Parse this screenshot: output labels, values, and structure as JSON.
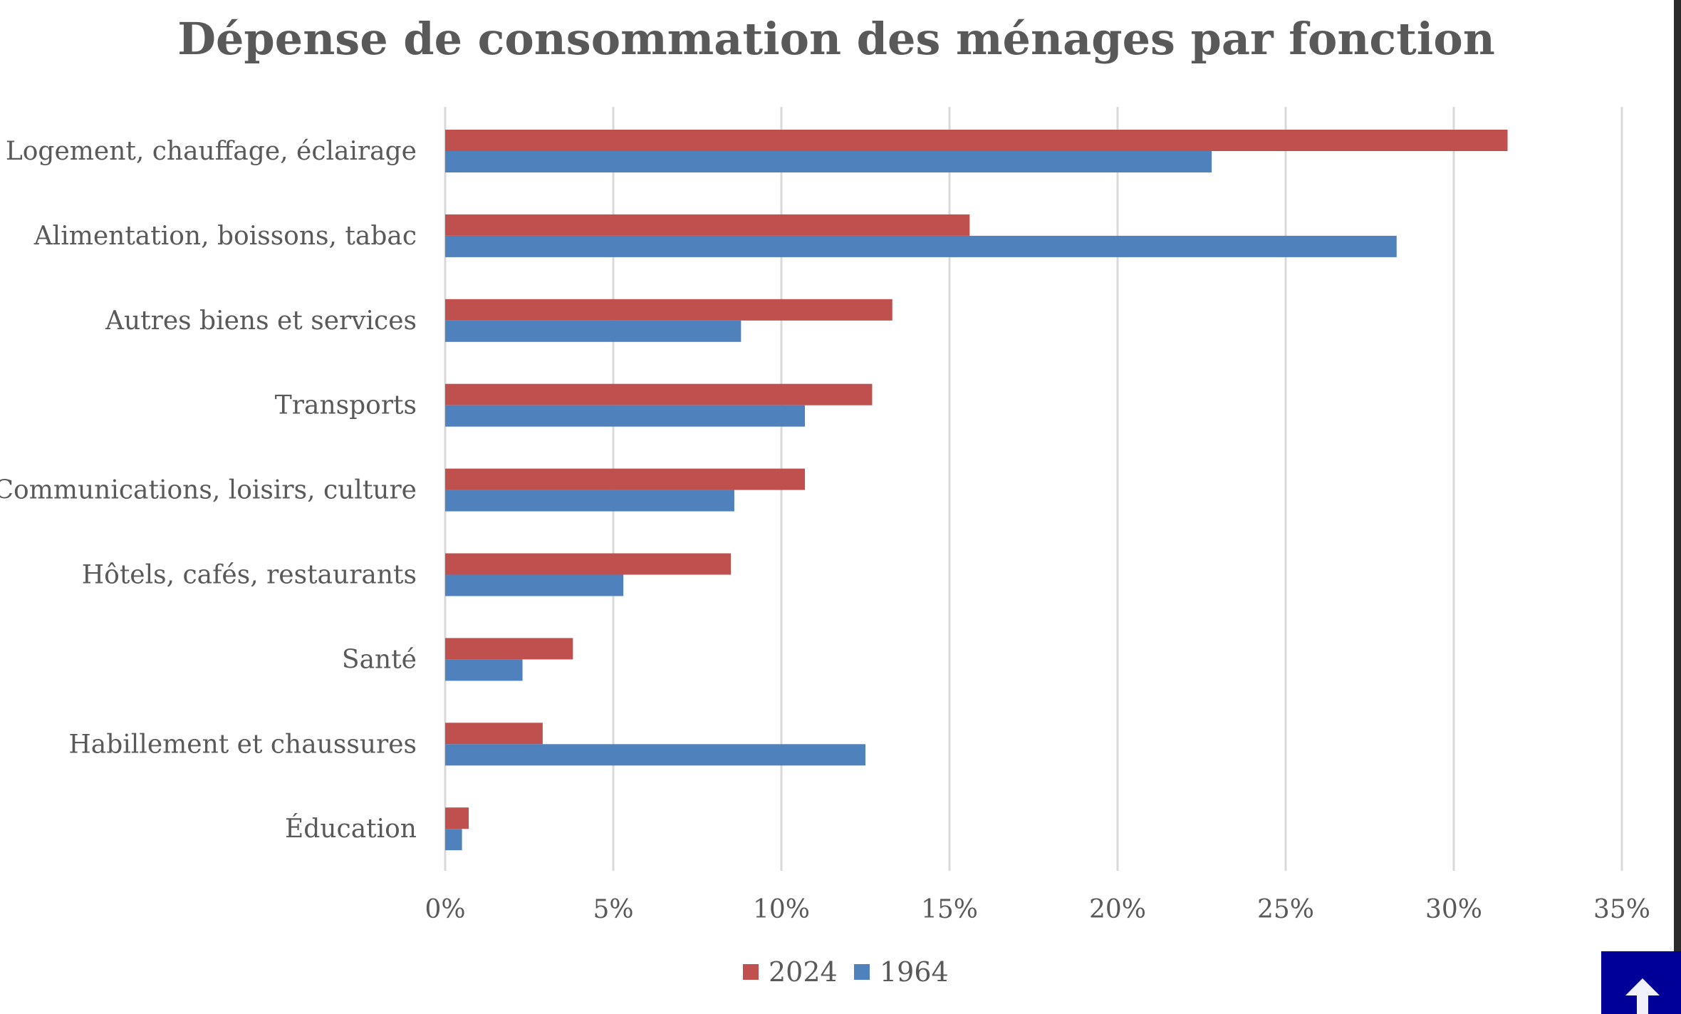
{
  "chart_data": {
    "type": "bar",
    "orientation": "horizontal",
    "title": "Dépense de consommation des ménages par fonction",
    "categories": [
      "Logement, chauffage, éclairage",
      "Alimentation, boissons, tabac",
      "Autres biens et services",
      "Transports",
      "Communications, loisirs, culture",
      "Hôtels, cafés, restaurants",
      "Santé",
      "Habillement et chaussures",
      "Éducation"
    ],
    "series": [
      {
        "name": "2024",
        "color": "#C0504D",
        "values": [
          31.6,
          15.6,
          13.3,
          12.7,
          10.7,
          8.5,
          3.8,
          2.9,
          0.7
        ]
      },
      {
        "name": "1964",
        "color": "#4F81BD",
        "values": [
          22.8,
          28.3,
          8.8,
          10.7,
          8.6,
          5.3,
          2.3,
          12.5,
          0.5
        ]
      }
    ],
    "xlim": [
      0,
      35
    ],
    "xticks": [
      "0%",
      "5%",
      "10%",
      "15%",
      "20%",
      "25%",
      "30%",
      "35%"
    ],
    "grid": "vertical",
    "legend": "bottom",
    "xlabel": "",
    "ylabel": ""
  },
  "ui": {
    "scroll_top_icon": "arrow-up-icon",
    "button_color": "#000099"
  }
}
